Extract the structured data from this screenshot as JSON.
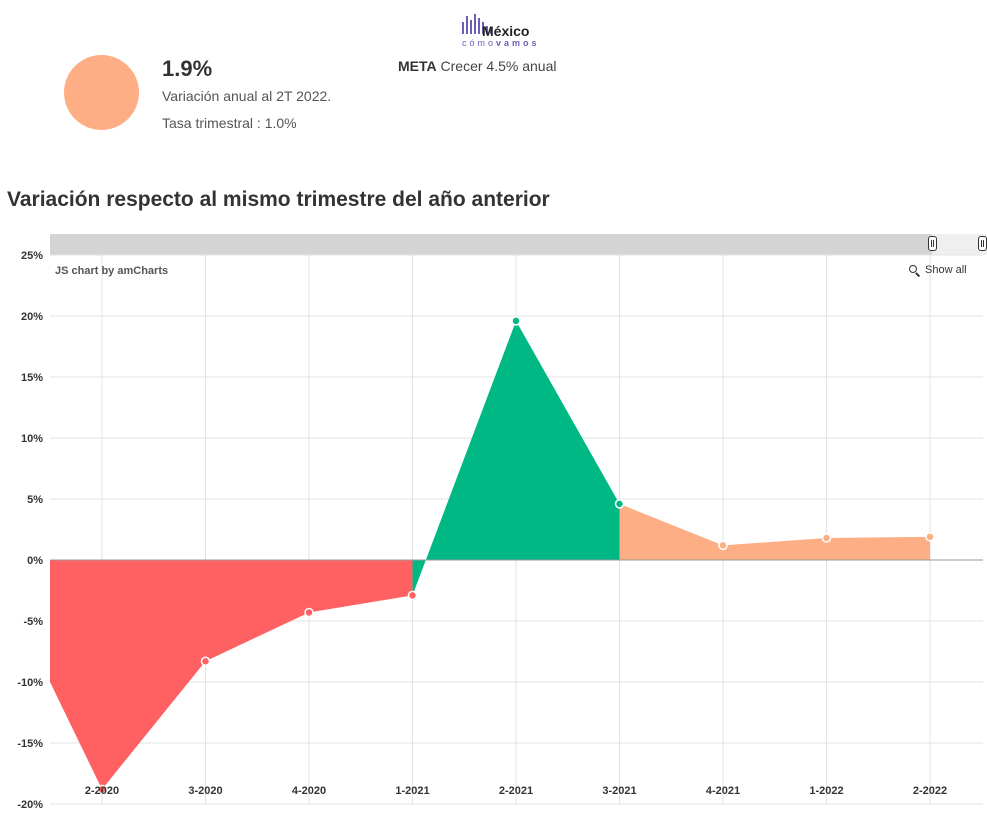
{
  "logo": {
    "word": "México",
    "sub_a": "cómo",
    "sub_b": "vamos"
  },
  "kpi": {
    "value": "1.9%",
    "line1": "Variación anual al 2T 2022.",
    "line2": "Tasa trimestral : 1.0%",
    "dot_color": "#fdae84"
  },
  "meta": {
    "label": "META",
    "text": "Crecer 4.5% anual"
  },
  "chart_title": "Variación respecto al mismo trimestre del año anterior",
  "credit": "JS chart by amCharts",
  "show_all": "Show all",
  "colors": {
    "negative": "#ff6163",
    "growth": "#00b884",
    "moderate": "#fdae84"
  },
  "chart_data": {
    "type": "area",
    "title": "Variación respecto al mismo trimestre del año anterior",
    "xlabel": "",
    "ylabel": "",
    "ylim": [
      -20,
      25
    ],
    "y_ticks": [
      -20,
      -15,
      -10,
      -5,
      0,
      5,
      10,
      15,
      20,
      25
    ],
    "y_tick_labels": [
      "-20%",
      "-15%",
      "-10%",
      "-5%",
      "0%",
      "5%",
      "10%",
      "15%",
      "20%",
      "25%"
    ],
    "categories": [
      "2-2020",
      "3-2020",
      "4-2020",
      "1-2021",
      "2-2021",
      "3-2021",
      "4-2021",
      "1-2022",
      "2-2022"
    ],
    "values": [
      -18.8,
      -8.3,
      -4.3,
      -2.9,
      19.6,
      4.6,
      1.2,
      1.8,
      1.9
    ],
    "previous_value": -10.0,
    "grid": true
  }
}
